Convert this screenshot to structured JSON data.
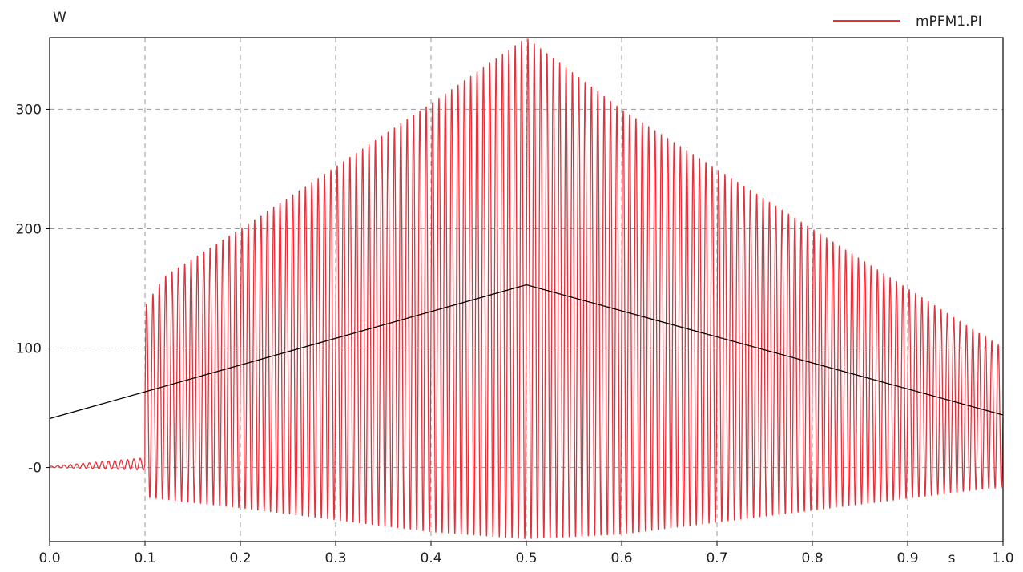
{
  "chart_data": {
    "type": "line",
    "y_unit_label": "W",
    "x_unit_label": "s",
    "xlim": [
      0.0,
      1.0
    ],
    "ylim": [
      -62,
      360
    ],
    "x_ticks": [
      0.0,
      0.1,
      0.2,
      0.3,
      0.4,
      0.5,
      0.6,
      0.7,
      0.8,
      0.9,
      1.0
    ],
    "x_tick_labels": [
      "0.0",
      "0.1",
      "0.2",
      "0.3",
      "0.4",
      "0.5",
      "0.6",
      "0.7",
      "0.8",
      "0.9",
      "1.0"
    ],
    "y_ticks": [
      0,
      100,
      200,
      300
    ],
    "y_tick_labels": [
      "-0",
      "100",
      "200",
      "300"
    ],
    "grid": true,
    "legend_position": "top-right",
    "series": [
      {
        "name": "mPFM1.PI",
        "color": "#e8303a",
        "kind": "oscillation",
        "frequency_cycles_per_s": 150,
        "start_x": 0.1,
        "envelope_upper": [
          {
            "x": 0.0,
            "y": 1
          },
          {
            "x": 0.1,
            "y": 8
          },
          {
            "x": 0.1,
            "y": 135
          },
          {
            "x": 0.12,
            "y": 160
          },
          {
            "x": 0.2,
            "y": 200
          },
          {
            "x": 0.3,
            "y": 252
          },
          {
            "x": 0.4,
            "y": 305
          },
          {
            "x": 0.5,
            "y": 360
          },
          {
            "x": 0.6,
            "y": 300
          },
          {
            "x": 0.7,
            "y": 250
          },
          {
            "x": 0.8,
            "y": 200
          },
          {
            "x": 0.9,
            "y": 150
          },
          {
            "x": 1.0,
            "y": 100
          }
        ],
        "envelope_lower": [
          {
            "x": 0.0,
            "y": 0
          },
          {
            "x": 0.1,
            "y": -2
          },
          {
            "x": 0.1,
            "y": -25
          },
          {
            "x": 0.2,
            "y": -34
          },
          {
            "x": 0.3,
            "y": -44
          },
          {
            "x": 0.4,
            "y": -54
          },
          {
            "x": 0.5,
            "y": -60
          },
          {
            "x": 0.6,
            "y": -56
          },
          {
            "x": 0.7,
            "y": -46
          },
          {
            "x": 0.8,
            "y": -36
          },
          {
            "x": 0.9,
            "y": -26
          },
          {
            "x": 1.0,
            "y": -16
          }
        ]
      },
      {
        "name": "",
        "color": "#000000",
        "kind": "line",
        "x": [
          0.0,
          0.5,
          1.0
        ],
        "y": [
          41,
          153,
          44
        ]
      }
    ]
  }
}
